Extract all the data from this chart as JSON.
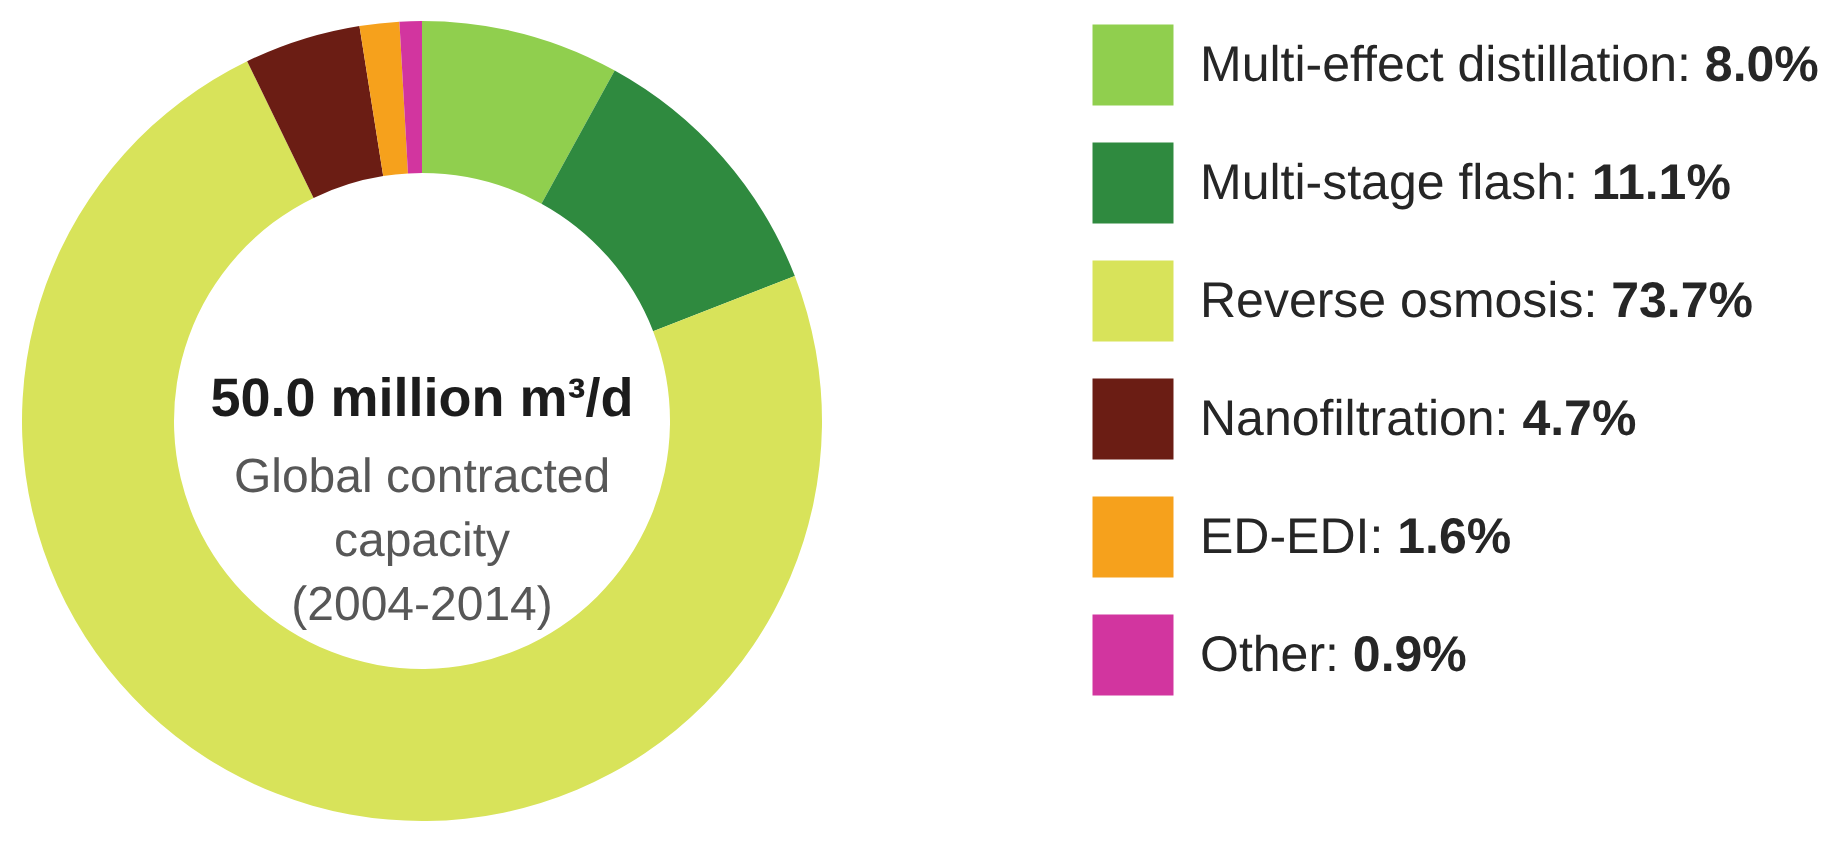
{
  "chart_data": {
    "type": "donut",
    "categories": [
      "Multi-effect distillation: 8.0%",
      "Multi-stage flash: 11.1%",
      "Reverse osmosis: 73.7%",
      "Nanofiltration: 4.7%",
      "ED-EDI: 1.6%",
      "Other: 0.9%"
    ],
    "values": [
      8.0,
      11.1,
      73.7,
      4.7,
      1.6,
      0.9
    ],
    "colors": [
      "#90cf4e",
      "#2f8a3f",
      "#d8e35a",
      "#6b1d14",
      "#f6a11c",
      "#d2359f"
    ],
    "legend": "right",
    "annotations": [
      "50.0 million m³/d",
      "Global contracted capacity (2004-2014)"
    ]
  }
}
